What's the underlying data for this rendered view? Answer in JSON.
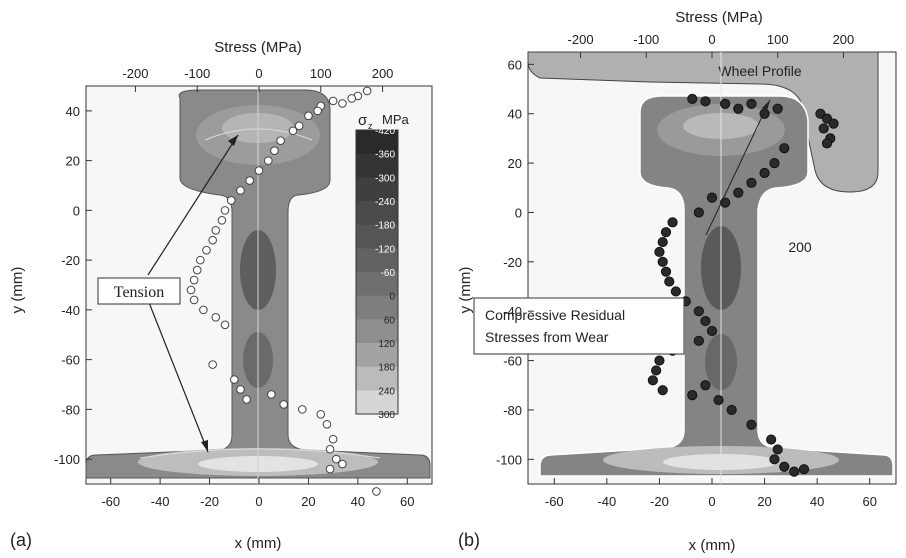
{
  "chart_data": [
    {
      "panel": "(a)",
      "type": "scatter",
      "xlabel": "x (mm)",
      "ylabel": "y (mm)",
      "x2label": "Stress (MPa)",
      "xlim": [
        -70,
        70
      ],
      "ylim": [
        -110,
        50
      ],
      "x2lim": [
        -280,
        280
      ],
      "x_ticks": [
        -60,
        -40,
        -20,
        0,
        20,
        40,
        60
      ],
      "y_ticks": [
        40,
        20,
        0,
        -20,
        -40,
        -60,
        -80,
        -100
      ],
      "x2_ticks": [
        -200,
        -100,
        0,
        100,
        200
      ],
      "colorbar": {
        "label": "σ",
        "sub": "z",
        "unit": "MPa",
        "ticks": [
          -420,
          -360,
          -300,
          -240,
          -180,
          -120,
          -60,
          0,
          60,
          120,
          180,
          240,
          300
        ],
        "colors": [
          "#2a2a2a",
          "#343434",
          "#3f3f3f",
          "#4a4a4a",
          "#555555",
          "#626262",
          "#6f6f6f",
          "#7e7e7e",
          "#8e8e8e",
          "#a3a3a3",
          "#bbbbbb",
          "#d6d6d6",
          "#f0f0f0"
        ]
      },
      "annotation": "Tension",
      "series": [
        {
          "marker": "open-circle",
          "points": [
            [
              175,
              48
            ],
            [
              160,
              46
            ],
            [
              150,
              45
            ],
            [
              135,
              43
            ],
            [
              120,
              44
            ],
            [
              100,
              42
            ],
            [
              95,
              40
            ],
            [
              80,
              38
            ],
            [
              65,
              34
            ],
            [
              55,
              32
            ],
            [
              35,
              28
            ],
            [
              25,
              24
            ],
            [
              15,
              20
            ],
            [
              0,
              16
            ],
            [
              -15,
              12
            ],
            [
              -30,
              8
            ],
            [
              -45,
              4
            ],
            [
              -55,
              0
            ],
            [
              -60,
              -4
            ],
            [
              -70,
              -8
            ],
            [
              -75,
              -12
            ],
            [
              -85,
              -16
            ],
            [
              -95,
              -20
            ],
            [
              -100,
              -24
            ],
            [
              -105,
              -28
            ],
            [
              -110,
              -32
            ],
            [
              -105,
              -36
            ],
            [
              -90,
              -40
            ],
            [
              -70,
              -43
            ],
            [
              -55,
              -46
            ],
            [
              -75,
              -62
            ],
            [
              -40,
              -68
            ],
            [
              -30,
              -72
            ],
            [
              -20,
              -76
            ],
            [
              20,
              -74
            ],
            [
              40,
              -78
            ],
            [
              70,
              -80
            ],
            [
              100,
              -82
            ],
            [
              110,
              -86
            ],
            [
              120,
              -92
            ],
            [
              115,
              -96
            ],
            [
              125,
              -100
            ],
            [
              115,
              -104
            ],
            [
              135,
              -102
            ],
            [
              190,
              -113
            ]
          ]
        }
      ]
    },
    {
      "panel": "(b)",
      "type": "scatter",
      "xlabel": "x (mm)",
      "ylabel": "y (mm)",
      "x2label": "Stress (MPa)",
      "xlim": [
        -70,
        70
      ],
      "ylim": [
        -110,
        65
      ],
      "x2lim": [
        -280,
        280
      ],
      "x_ticks": [
        -60,
        -40,
        -20,
        0,
        20,
        40,
        60
      ],
      "y_ticks": [
        60,
        40,
        20,
        0,
        -20,
        -40,
        -60,
        -80,
        -100
      ],
      "x2_ticks": [
        -200,
        -100,
        0,
        100,
        200
      ],
      "wheel_label": "Wheel Profile",
      "annotations": [
        "200",
        "Compressive Residual",
        "Stresses from Wear"
      ],
      "series": [
        {
          "marker": "filled-circle",
          "points": [
            [
              -30,
              46
            ],
            [
              -10,
              45
            ],
            [
              20,
              44
            ],
            [
              40,
              42
            ],
            [
              60,
              44
            ],
            [
              80,
              40
            ],
            [
              100,
              42
            ],
            [
              165,
              40
            ],
            [
              175,
              38
            ],
            [
              185,
              36
            ],
            [
              170,
              34
            ],
            [
              180,
              30
            ],
            [
              175,
              28
            ],
            [
              110,
              26
            ],
            [
              95,
              20
            ],
            [
              80,
              16
            ],
            [
              60,
              12
            ],
            [
              40,
              8
            ],
            [
              20,
              4
            ],
            [
              0,
              6
            ],
            [
              -20,
              0
            ],
            [
              -60,
              -4
            ],
            [
              -70,
              -8
            ],
            [
              -75,
              -12
            ],
            [
              -80,
              -16
            ],
            [
              -75,
              -20
            ],
            [
              -70,
              -24
            ],
            [
              -65,
              -28
            ],
            [
              -55,
              -32
            ],
            [
              -40,
              -36
            ],
            [
              -20,
              -40
            ],
            [
              -10,
              -44
            ],
            [
              0,
              -48
            ],
            [
              -20,
              -52
            ],
            [
              -60,
              -56
            ],
            [
              -80,
              -60
            ],
            [
              -85,
              -64
            ],
            [
              -90,
              -68
            ],
            [
              -75,
              -72
            ],
            [
              -30,
              -74
            ],
            [
              -10,
              -70
            ],
            [
              10,
              -76
            ],
            [
              30,
              -80
            ],
            [
              60,
              -86
            ],
            [
              90,
              -92
            ],
            [
              100,
              -96
            ],
            [
              95,
              -100
            ],
            [
              110,
              -103
            ],
            [
              125,
              -105
            ],
            [
              140,
              -104
            ]
          ]
        }
      ]
    }
  ]
}
